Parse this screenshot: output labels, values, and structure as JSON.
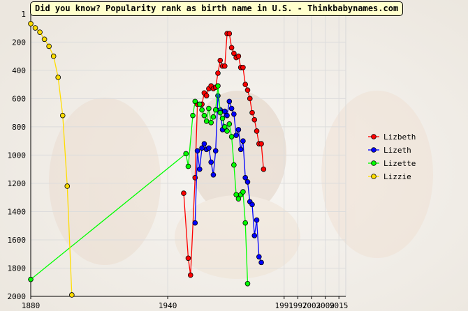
{
  "chart_data": {
    "type": "line",
    "title": "Did you know? Popularity rank as birth name in U.S. - Thinkbabynames.com",
    "xlabel": "",
    "ylabel": "",
    "y_inverted": true,
    "xlim": [
      1880,
      2018
    ],
    "ylim": [
      1,
      2000
    ],
    "x_ticks": [
      "1880",
      "1940",
      "1991",
      "1997",
      "2003",
      "2009",
      "2015"
    ],
    "y_ticks": [
      "1",
      "200",
      "400",
      "600",
      "800",
      "1000",
      "1200",
      "1400",
      "1600",
      "1800",
      "2000"
    ],
    "grid": true,
    "legend_position": "right",
    "series": [
      {
        "name": "Lizbeth",
        "color": "#ff0000",
        "points": [
          [
            1947,
            1270
          ],
          [
            1949,
            1730
          ],
          [
            1950,
            1850
          ],
          [
            1952,
            1160
          ],
          [
            1953,
            640
          ],
          [
            1955,
            640
          ],
          [
            1956,
            560
          ],
          [
            1957,
            580
          ],
          [
            1958,
            530
          ],
          [
            1959,
            510
          ],
          [
            1960,
            530
          ],
          [
            1961,
            520
          ],
          [
            1962,
            420
          ],
          [
            1963,
            330
          ],
          [
            1964,
            370
          ],
          [
            1965,
            370
          ],
          [
            1966,
            140
          ],
          [
            1967,
            140
          ],
          [
            1968,
            240
          ],
          [
            1969,
            280
          ],
          [
            1970,
            310
          ],
          [
            1971,
            300
          ],
          [
            1972,
            380
          ],
          [
            1973,
            380
          ],
          [
            1974,
            500
          ],
          [
            1975,
            540
          ],
          [
            1976,
            600
          ],
          [
            1977,
            700
          ],
          [
            1978,
            750
          ],
          [
            1979,
            830
          ],
          [
            1980,
            920
          ],
          [
            1981,
            920
          ],
          [
            1982,
            1100
          ]
        ]
      },
      {
        "name": "Lizeth",
        "color": "#0000ff",
        "points": [
          [
            1952,
            1480
          ],
          [
            1953,
            970
          ],
          [
            1954,
            1100
          ],
          [
            1955,
            950
          ],
          [
            1956,
            920
          ],
          [
            1957,
            960
          ],
          [
            1958,
            950
          ],
          [
            1959,
            1050
          ],
          [
            1960,
            1140
          ],
          [
            1961,
            970
          ],
          [
            1962,
            580
          ],
          [
            1963,
            680
          ],
          [
            1964,
            820
          ],
          [
            1965,
            690
          ],
          [
            1966,
            720
          ],
          [
            1967,
            620
          ],
          [
            1968,
            670
          ],
          [
            1969,
            710
          ],
          [
            1970,
            860
          ],
          [
            1971,
            820
          ],
          [
            1972,
            960
          ],
          [
            1973,
            900
          ],
          [
            1974,
            1160
          ],
          [
            1975,
            1190
          ],
          [
            1976,
            1330
          ],
          [
            1977,
            1350
          ],
          [
            1978,
            1570
          ],
          [
            1979,
            1460
          ],
          [
            1980,
            1720
          ],
          [
            1981,
            1760
          ]
        ]
      },
      {
        "name": "Lizette",
        "color": "#00ff00",
        "points": [
          [
            1880,
            1880
          ],
          [
            1948,
            990
          ],
          [
            1949,
            1080
          ],
          [
            1951,
            720
          ],
          [
            1952,
            620
          ],
          [
            1954,
            640
          ],
          [
            1955,
            680
          ],
          [
            1956,
            720
          ],
          [
            1957,
            760
          ],
          [
            1958,
            670
          ],
          [
            1959,
            770
          ],
          [
            1960,
            730
          ],
          [
            1961,
            680
          ],
          [
            1962,
            510
          ],
          [
            1963,
            700
          ],
          [
            1964,
            740
          ],
          [
            1965,
            800
          ],
          [
            1966,
            830
          ],
          [
            1967,
            780
          ],
          [
            1968,
            870
          ],
          [
            1969,
            1070
          ],
          [
            1970,
            1280
          ],
          [
            1971,
            1310
          ],
          [
            1972,
            1280
          ],
          [
            1973,
            1260
          ],
          [
            1974,
            1480
          ],
          [
            1975,
            1910
          ]
        ]
      },
      {
        "name": "Lizzie",
        "color": "#ffdd00",
        "points": [
          [
            1880,
            70
          ],
          [
            1882,
            100
          ],
          [
            1884,
            130
          ],
          [
            1886,
            180
          ],
          [
            1888,
            230
          ],
          [
            1890,
            300
          ],
          [
            1892,
            450
          ],
          [
            1894,
            720
          ],
          [
            1896,
            1220
          ],
          [
            1898,
            1990
          ]
        ]
      }
    ]
  }
}
